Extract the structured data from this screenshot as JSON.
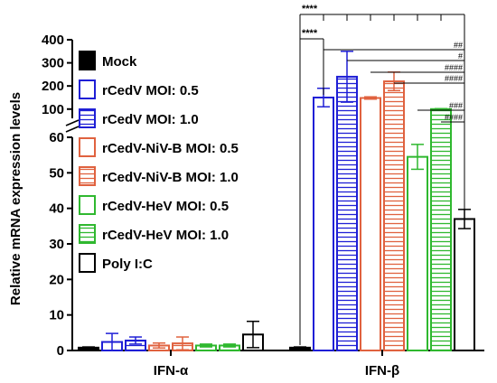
{
  "chart_data": {
    "type": "bar",
    "ylabel": "Relative mRNA expression levels",
    "categories": [
      "IFN-α",
      "IFN-β"
    ],
    "y_axis": {
      "broken": true,
      "lower_ticks": [
        "0",
        "10",
        "20",
        "30",
        "40",
        "50",
        "60"
      ],
      "upper_ticks": [
        "100",
        "200",
        "300",
        "400"
      ],
      "lower_range": [
        0,
        60
      ],
      "upper_range": [
        60,
        400
      ]
    },
    "series": [
      {
        "name": "Mock",
        "color": "#000000",
        "pattern": "solid",
        "values": [
          0.8,
          0.8
        ],
        "errors": [
          0.2,
          0.2
        ]
      },
      {
        "name": "rCedV MOI: 0.5",
        "color": "#1f1fd6",
        "pattern": "open",
        "values": [
          2.4,
          150
        ],
        "errors": [
          2.4,
          40
        ]
      },
      {
        "name": "rCedV MOI: 1.0",
        "color": "#1f1fd6",
        "pattern": "hlines",
        "values": [
          2.8,
          240
        ],
        "errors": [
          1.0,
          110
        ]
      },
      {
        "name": "rCedV-NiV-B MOI: 0.5",
        "color": "#e0623f",
        "pattern": "open",
        "values": [
          1.4,
          148
        ],
        "errors": [
          0.7,
          5
        ]
      },
      {
        "name": "rCedV-NiV-B MOI: 1.0",
        "color": "#e0623f",
        "pattern": "hlines",
        "values": [
          2.0,
          220
        ],
        "errors": [
          1.8,
          40
        ]
      },
      {
        "name": "rCedV-HeV MOI: 0.5",
        "color": "#2fb82f",
        "pattern": "open",
        "values": [
          1.4,
          54.5
        ],
        "errors": [
          0.4,
          3.5
        ]
      },
      {
        "name": "rCedV-HeV MOI: 1.0",
        "color": "#2fb82f",
        "pattern": "hlines",
        "values": [
          1.4,
          100
        ],
        "errors": [
          0.4,
          2
        ]
      },
      {
        "name": "Poly I:C",
        "color": "#000000",
        "pattern": "open",
        "values": [
          4.5,
          37
        ],
        "errors": [
          3.7,
          2.7
        ]
      }
    ],
    "annotations": [
      {
        "label": "****",
        "from": "Mock",
        "to": "Poly I:C"
      },
      {
        "label": "****",
        "from": "Mock",
        "to": "rCedV MOI: 0.5"
      },
      {
        "label": "##",
        "from": "rCedV MOI: 0.5",
        "to": "Poly I:C"
      },
      {
        "label": "#",
        "from": "rCedV MOI: 1.0",
        "to": "Poly I:C"
      },
      {
        "label": "####",
        "from": "rCedV-NiV-B MOI: 0.5",
        "to": "Poly I:C"
      },
      {
        "label": "####",
        "from": "rCedV-NiV-B MOI: 1.0",
        "to": "Poly I:C"
      },
      {
        "label": "###",
        "from": "rCedV-HeV MOI: 0.5",
        "to": "Poly I:C"
      },
      {
        "label": "####",
        "from": "rCedV-HeV MOI: 1.0",
        "to": "Poly I:C"
      }
    ]
  }
}
